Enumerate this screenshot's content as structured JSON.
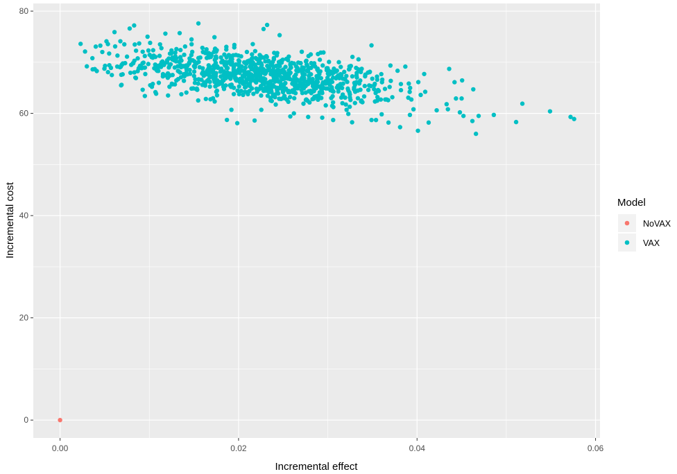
{
  "chart_data": {
    "type": "scatter",
    "title": "",
    "xlabel": "Incremental effect",
    "ylabel": "Incremental cost",
    "xlim": [
      -0.003,
      0.0605
    ],
    "ylim": [
      -3.5,
      81.5
    ],
    "x_ticks": [
      0.0,
      0.02,
      0.04,
      0.06
    ],
    "x_tick_labels": [
      "0.00",
      "0.02",
      "0.04",
      "0.06"
    ],
    "y_ticks": [
      0,
      20,
      40,
      60,
      80
    ],
    "y_tick_labels": [
      "0",
      "20",
      "40",
      "60",
      "80"
    ],
    "grid": true,
    "legend": {
      "title": "Model",
      "position": "right",
      "entries": [
        {
          "label": "NoVAX",
          "color": "#F8766D"
        },
        {
          "label": "VAX",
          "color": "#00BFC4"
        }
      ]
    },
    "colors": {
      "panel_background": "#EBEBEB",
      "grid_major": "#FFFFFF",
      "NoVAX": "#F8766D",
      "VAX": "#00BFC4"
    },
    "series": [
      {
        "name": "NoVAX",
        "x": [
          0.0
        ],
        "y": [
          0.0
        ]
      },
      {
        "name": "VAX",
        "approx_point_count": 1000,
        "x": [
          0.0023,
          0.003,
          0.0028,
          0.0052,
          0.0055,
          0.0058,
          0.0057,
          0.0061,
          0.0072,
          0.0075,
          0.0078,
          0.0083,
          0.0085,
          0.0095,
          0.0098,
          0.0099,
          0.0101,
          0.0108,
          0.0118,
          0.0121,
          0.0134,
          0.0155,
          0.0173,
          0.0192,
          0.0228,
          0.0232,
          0.0236,
          0.0246,
          0.0258,
          0.0278,
          0.0306,
          0.0349,
          0.0381,
          0.0392,
          0.0401,
          0.0408,
          0.0413,
          0.0422,
          0.0436,
          0.0442,
          0.0448,
          0.0452,
          0.0462,
          0.0463,
          0.0466,
          0.0469,
          0.0486,
          0.0511,
          0.0518,
          0.0549,
          0.0572,
          0.0576,
          0.0218,
          0.0262,
          0.0323,
          0.0354,
          0.0368,
          0.0396
        ],
        "y": [
          73.6,
          69.2,
          72.1,
          74.1,
          71.7,
          67.5,
          68.9,
          75.9,
          73.5,
          71.1,
          76.6,
          77.2,
          66.9,
          63.4,
          75.0,
          72.3,
          65.5,
          68.5,
          75.6,
          63.5,
          75.7,
          77.6,
          74.9,
          60.7,
          76.5,
          77.3,
          62.5,
          75.3,
          59.4,
          59.3,
          58.7,
          58.7,
          57.3,
          59.7,
          56.6,
          67.7,
          58.2,
          60.6,
          68.7,
          66.1,
          60.2,
          59.5,
          58.5,
          64.7,
          56.0,
          59.5,
          59.7,
          58.3,
          61.9,
          60.4,
          59.3,
          58.9,
          58.6,
          60.0,
          59.9,
          58.7,
          58.2,
          60.8
        ]
      }
    ]
  }
}
